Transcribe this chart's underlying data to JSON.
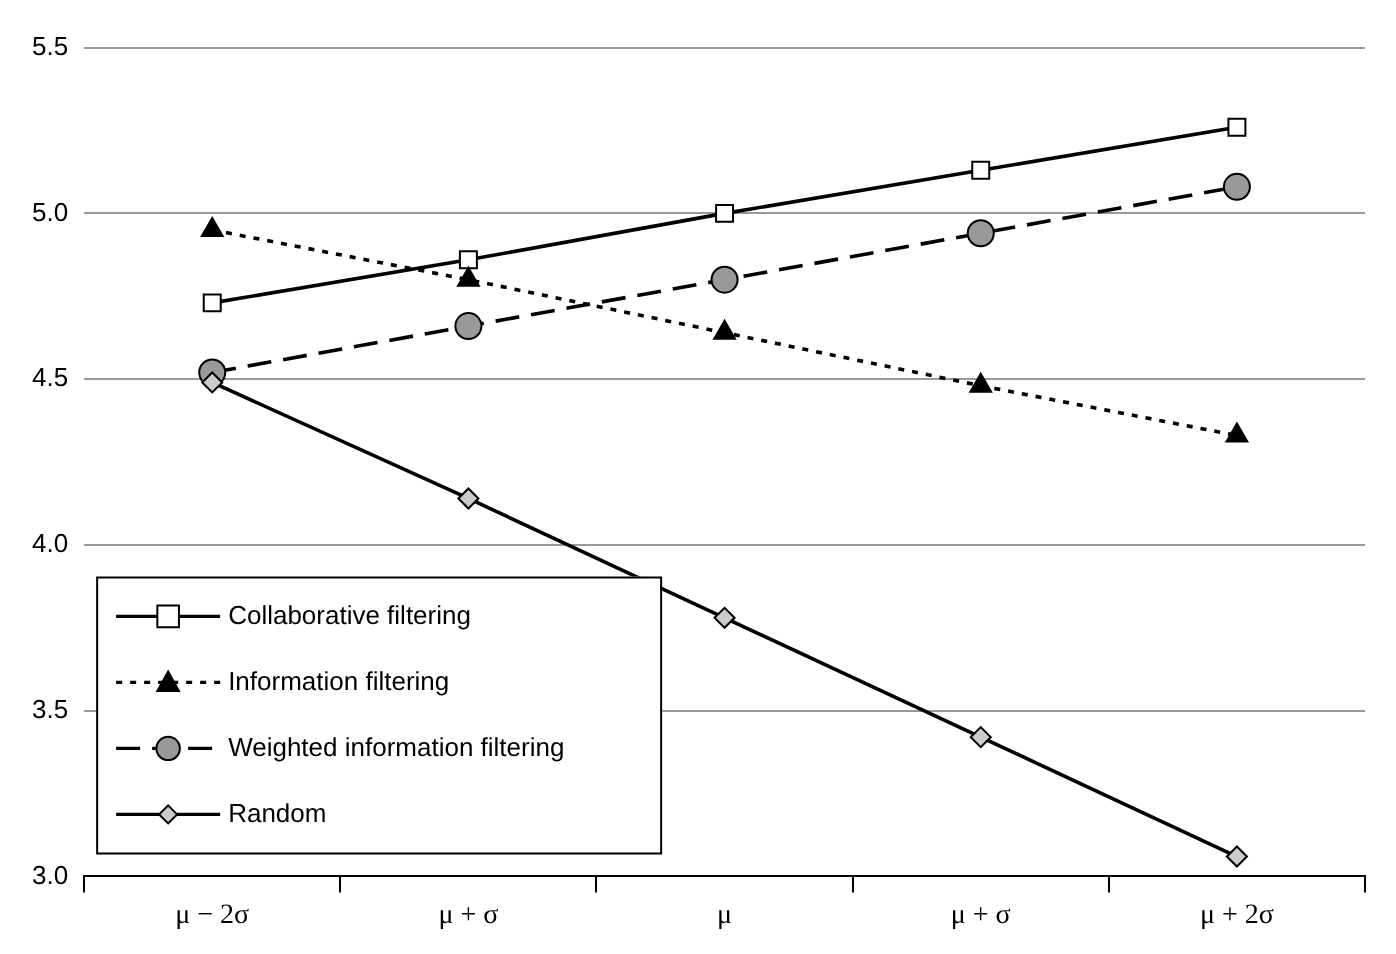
{
  "chart_data": {
    "type": "line",
    "categories": [
      "μ − 2σ",
      "μ + σ",
      "μ",
      "μ + σ",
      "μ + 2σ"
    ],
    "series": [
      {
        "name": "Collaborative filtering",
        "color": "#ffffff",
        "marker": "square",
        "line_style": "solid",
        "values": [
          4.73,
          4.86,
          5.0,
          5.13,
          5.26
        ]
      },
      {
        "name": "Information filtering",
        "color": "#000000",
        "marker": "triangle",
        "line_style": "dotted",
        "values": [
          4.95,
          4.8,
          4.64,
          4.48,
          4.33
        ]
      },
      {
        "name": "Weighted information filtering",
        "color": "#999999",
        "marker": "circle",
        "line_style": "dashed",
        "values": [
          4.52,
          4.66,
          4.8,
          4.94,
          5.08
        ]
      },
      {
        "name": "Random",
        "color": "#cccccc",
        "marker": "diamond",
        "line_style": "solid",
        "values": [
          4.49,
          4.14,
          3.78,
          3.42,
          3.06
        ]
      }
    ],
    "ylim": [
      3.0,
      5.5
    ],
    "yticks": [
      {
        "value": 3.0,
        "label": "3.0"
      },
      {
        "value": 3.5,
        "label": "3.5"
      },
      {
        "value": 4.0,
        "label": "4.0"
      },
      {
        "value": 4.5,
        "label": "4.5"
      },
      {
        "value": 5.0,
        "label": "5.0"
      },
      {
        "value": 5.5,
        "label": "5.5"
      }
    ],
    "grid": "y",
    "legend": "bottom left"
  }
}
